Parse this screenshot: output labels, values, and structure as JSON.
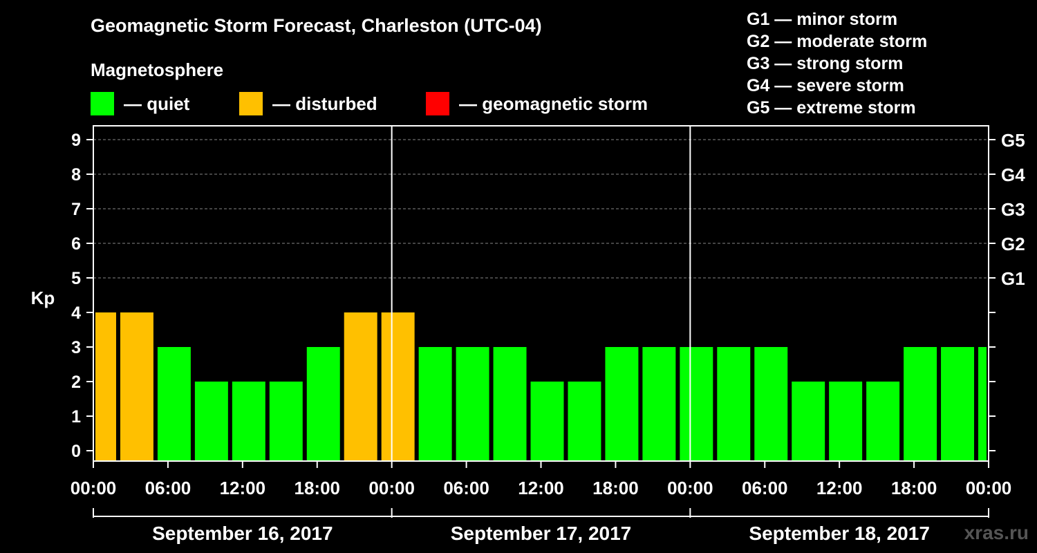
{
  "title": "Geomagnetic Storm Forecast, Charleston (UTC-04)",
  "subtitle": "Magnetosphere",
  "legend": [
    {
      "label": "— quiet",
      "color": "#00ff00"
    },
    {
      "label": "— disturbed",
      "color": "#ffc000"
    },
    {
      "label": "— geomagnetic storm",
      "color": "#ff0000"
    }
  ],
  "storm_scale": [
    "G1 — minor storm",
    "G2 — moderate storm",
    "G3 — strong storm",
    "G4 — severe storm",
    "G5 — extreme storm"
  ],
  "watermark": "xras.ru",
  "chart_data": {
    "type": "bar",
    "ylabel": "Kp",
    "ylim": [
      0,
      9
    ],
    "yticks": [
      "0",
      "1",
      "2",
      "3",
      "4",
      "5",
      "6",
      "7",
      "8",
      "9"
    ],
    "right_ticks": [
      {
        "kp": 5,
        "label": "G1"
      },
      {
        "kp": 6,
        "label": "G2"
      },
      {
        "kp": 7,
        "label": "G3"
      },
      {
        "kp": 8,
        "label": "G4"
      },
      {
        "kp": 9,
        "label": "G5"
      }
    ],
    "xticks": [
      "00:00",
      "06:00",
      "12:00",
      "18:00",
      "00:00",
      "06:00",
      "12:00",
      "18:00",
      "00:00",
      "06:00",
      "12:00",
      "18:00",
      "00:00"
    ],
    "days": [
      "September 16, 2017",
      "September 17, 2017",
      "September 18, 2017"
    ],
    "grid": true,
    "bars": [
      {
        "start": "2017-09-16 00:00",
        "end": "2017-09-16 02:00",
        "kp": 4,
        "status": "disturbed"
      },
      {
        "start": "2017-09-16 02:00",
        "end": "2017-09-16 05:00",
        "kp": 4,
        "status": "disturbed"
      },
      {
        "start": "2017-09-16 05:00",
        "end": "2017-09-16 08:00",
        "kp": 3,
        "status": "quiet"
      },
      {
        "start": "2017-09-16 08:00",
        "end": "2017-09-16 11:00",
        "kp": 2,
        "status": "quiet"
      },
      {
        "start": "2017-09-16 11:00",
        "end": "2017-09-16 14:00",
        "kp": 2,
        "status": "quiet"
      },
      {
        "start": "2017-09-16 14:00",
        "end": "2017-09-16 17:00",
        "kp": 2,
        "status": "quiet"
      },
      {
        "start": "2017-09-16 17:00",
        "end": "2017-09-16 20:00",
        "kp": 3,
        "status": "quiet"
      },
      {
        "start": "2017-09-16 20:00",
        "end": "2017-09-16 23:00",
        "kp": 4,
        "status": "disturbed"
      },
      {
        "start": "2017-09-16 23:00",
        "end": "2017-09-17 02:00",
        "kp": 4,
        "status": "disturbed"
      },
      {
        "start": "2017-09-17 02:00",
        "end": "2017-09-17 05:00",
        "kp": 3,
        "status": "quiet"
      },
      {
        "start": "2017-09-17 05:00",
        "end": "2017-09-17 08:00",
        "kp": 3,
        "status": "quiet"
      },
      {
        "start": "2017-09-17 08:00",
        "end": "2017-09-17 11:00",
        "kp": 3,
        "status": "quiet"
      },
      {
        "start": "2017-09-17 11:00",
        "end": "2017-09-17 14:00",
        "kp": 2,
        "status": "quiet"
      },
      {
        "start": "2017-09-17 14:00",
        "end": "2017-09-17 17:00",
        "kp": 2,
        "status": "quiet"
      },
      {
        "start": "2017-09-17 17:00",
        "end": "2017-09-17 20:00",
        "kp": 3,
        "status": "quiet"
      },
      {
        "start": "2017-09-17 20:00",
        "end": "2017-09-17 23:00",
        "kp": 3,
        "status": "quiet"
      },
      {
        "start": "2017-09-17 23:00",
        "end": "2017-09-18 02:00",
        "kp": 3,
        "status": "quiet"
      },
      {
        "start": "2017-09-18 02:00",
        "end": "2017-09-18 05:00",
        "kp": 3,
        "status": "quiet"
      },
      {
        "start": "2017-09-18 05:00",
        "end": "2017-09-18 08:00",
        "kp": 3,
        "status": "quiet"
      },
      {
        "start": "2017-09-18 08:00",
        "end": "2017-09-18 11:00",
        "kp": 2,
        "status": "quiet"
      },
      {
        "start": "2017-09-18 11:00",
        "end": "2017-09-18 14:00",
        "kp": 2,
        "status": "quiet"
      },
      {
        "start": "2017-09-18 14:00",
        "end": "2017-09-18 17:00",
        "kp": 2,
        "status": "quiet"
      },
      {
        "start": "2017-09-18 17:00",
        "end": "2017-09-18 20:00",
        "kp": 3,
        "status": "quiet"
      },
      {
        "start": "2017-09-18 20:00",
        "end": "2017-09-18 23:00",
        "kp": 3,
        "status": "quiet"
      },
      {
        "start": "2017-09-18 23:00",
        "end": "2017-09-19 00:00",
        "kp": 3,
        "status": "quiet"
      }
    ],
    "colors": {
      "quiet": "#00ff00",
      "disturbed": "#ffc000",
      "storm": "#ff0000"
    }
  }
}
